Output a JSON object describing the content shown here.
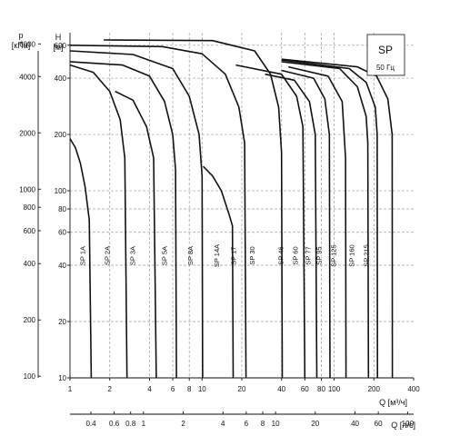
{
  "chart_data": {
    "type": "line",
    "legend_box": {
      "title": "SP",
      "subtitle": "50 Гц"
    },
    "y_axis_pressure": {
      "label_top": "p",
      "unit": "[кПа]",
      "ticks": [
        {
          "label": "6000",
          "h": 610
        },
        {
          "label": "4000",
          "h": 408
        },
        {
          "label": "2000",
          "h": 204
        },
        {
          "label": "1000",
          "h": 102
        },
        {
          "label": "800",
          "h": 81.6
        },
        {
          "label": "600",
          "h": 61.2
        },
        {
          "label": "400",
          "h": 40.8
        },
        {
          "label": "200",
          "h": 20.4
        },
        {
          "label": "100",
          "h": 10.2
        }
      ]
    },
    "y_axis_head": {
      "label_top": "H",
      "unit": "[м]",
      "ticks": [
        {
          "label": "600",
          "h": 600
        },
        {
          "label": "400",
          "h": 400
        },
        {
          "label": "200",
          "h": 200
        },
        {
          "label": "100",
          "h": 100
        },
        {
          "label": "80",
          "h": 80
        },
        {
          "label": "60",
          "h": 60
        },
        {
          "label": "40",
          "h": 40
        },
        {
          "label": "20",
          "h": 20
        },
        {
          "label": "10",
          "h": 10
        }
      ],
      "ylim": [
        10,
        700
      ],
      "scale": "log"
    },
    "x_axis_m3h": {
      "label": "Q [м³/ч]",
      "ticks": [
        {
          "label": "1",
          "q": 1
        },
        {
          "label": "2",
          "q": 2
        },
        {
          "label": "4",
          "q": 4
        },
        {
          "label": "6",
          "q": 6
        },
        {
          "label": "8",
          "q": 8
        },
        {
          "label": "10",
          "q": 10
        },
        {
          "label": "20",
          "q": 20
        },
        {
          "label": "40",
          "q": 40
        },
        {
          "label": "60",
          "q": 60
        },
        {
          "label": "80",
          "q": 80
        },
        {
          "label": "100",
          "q": 100
        },
        {
          "label": "200",
          "q": 200
        },
        {
          "label": "400",
          "q": 400
        }
      ],
      "xlim": [
        1,
        400
      ],
      "scale": "log"
    },
    "x_axis_ls": {
      "label": "Q [л/с]",
      "ticks": [
        {
          "label": "0.4",
          "q": 1.44
        },
        {
          "label": "0.6",
          "q": 2.16
        },
        {
          "label": "0.8",
          "q": 2.88
        },
        {
          "label": "1",
          "q": 3.6
        },
        {
          "label": "2",
          "q": 7.2
        },
        {
          "label": "4",
          "q": 14.4
        },
        {
          "label": "6",
          "q": 21.6
        },
        {
          "label": "8",
          "q": 28.8
        },
        {
          "label": "10",
          "q": 36
        },
        {
          "label": "20",
          "q": 72
        },
        {
          "label": "40",
          "q": 144
        },
        {
          "label": "60",
          "q": 216
        },
        {
          "label": "100",
          "q": 360
        }
      ]
    },
    "grid_lines_q": [
      1,
      2,
      4,
      6,
      8,
      10,
      20,
      40,
      60,
      80,
      100,
      200,
      400
    ],
    "grid_lines_h": [
      10,
      20,
      40,
      60,
      80,
      100,
      200,
      400,
      600
    ],
    "series": [
      {
        "name": "SP 1A",
        "label_q": 1.3,
        "points": [
          [
            1,
            190
          ],
          [
            1.1,
            170
          ],
          [
            1.2,
            140
          ],
          [
            1.3,
            105
          ],
          [
            1.4,
            70
          ],
          [
            1.45,
            10
          ]
        ]
      },
      {
        "name": "SP 2A",
        "label_q": 2.0,
        "points": [
          [
            1,
            470
          ],
          [
            1.5,
            430
          ],
          [
            2,
            340
          ],
          [
            2.4,
            240
          ],
          [
            2.6,
            150
          ],
          [
            2.7,
            10
          ]
        ]
      },
      {
        "name": "SP 3A",
        "label_q": 3.1,
        "points": [
          [
            2.2,
            340
          ],
          [
            3,
            305
          ],
          [
            3.8,
            220
          ],
          [
            4.3,
            150
          ],
          [
            4.5,
            10
          ]
        ]
      },
      {
        "name": "SP 5A",
        "label_q": 5.4,
        "points": [
          [
            1,
            490
          ],
          [
            2.5,
            470
          ],
          [
            4,
            410
          ],
          [
            5.2,
            300
          ],
          [
            6,
            200
          ],
          [
            6.3,
            130
          ],
          [
            6.4,
            10
          ]
        ]
      },
      {
        "name": "SP 8A",
        "label_q": 8.5,
        "points": [
          [
            1,
            560
          ],
          [
            3,
            535
          ],
          [
            6,
            450
          ],
          [
            8,
            320
          ],
          [
            9.5,
            200
          ],
          [
            10,
            120
          ],
          [
            10.1,
            10
          ]
        ]
      },
      {
        "name": "SP 14A",
        "label_q": 13.5,
        "points": [
          [
            10.2,
            135
          ],
          [
            12,
            120
          ],
          [
            14,
            100
          ],
          [
            16,
            75
          ],
          [
            17,
            65
          ],
          [
            17.2,
            10
          ]
        ]
      },
      {
        "name": "SP 17",
        "label_q": 18,
        "points": [
          [
            1,
            600
          ],
          [
            5,
            590
          ],
          [
            10,
            540
          ],
          [
            15,
            420
          ],
          [
            19,
            280
          ],
          [
            21,
            180
          ],
          [
            21.5,
            10
          ]
        ]
      },
      {
        "name": "SP 30",
        "label_q": 25,
        "points": [
          [
            1.8,
            640
          ],
          [
            12,
            635
          ],
          [
            25,
            560
          ],
          [
            33,
            420
          ],
          [
            38,
            280
          ],
          [
            40,
            160
          ],
          [
            40.5,
            10
          ]
        ]
      },
      {
        "name": "SP 46",
        "label_q": 41,
        "points": [
          [
            18,
            470
          ],
          [
            40,
            420
          ],
          [
            52,
            320
          ],
          [
            58,
            220
          ],
          [
            60,
            10
          ]
        ]
      },
      {
        "name": "SP 60",
        "label_q": 53,
        "points": [
          [
            30,
            420
          ],
          [
            50,
            390
          ],
          [
            65,
            300
          ],
          [
            72,
            200
          ],
          [
            74,
            10
          ]
        ]
      },
      {
        "name": "SP 77",
        "label_q": 66,
        "points": [
          [
            40,
            440
          ],
          [
            70,
            400
          ],
          [
            85,
            310
          ],
          [
            92,
            200
          ],
          [
            93,
            10
          ]
        ]
      },
      {
        "name": "SP 95",
        "label_q": 80,
        "points": [
          [
            45,
            460
          ],
          [
            90,
            410
          ],
          [
            115,
            300
          ],
          [
            122,
            150
          ],
          [
            123,
            10
          ]
        ]
      },
      {
        "name": "SP 125",
        "label_q": 103,
        "points": [
          [
            40,
            490
          ],
          [
            110,
            450
          ],
          [
            150,
            360
          ],
          [
            175,
            250
          ],
          [
            180,
            180
          ],
          [
            182,
            10
          ]
        ]
      },
      {
        "name": "SP 160",
        "label_q": 142,
        "points": [
          [
            40,
            500
          ],
          [
            130,
            450
          ],
          [
            175,
            380
          ],
          [
            205,
            280
          ],
          [
            212,
            200
          ],
          [
            213,
            10
          ]
        ]
      },
      {
        "name": "SP 215",
        "label_q": 182,
        "points": [
          [
            40,
            505
          ],
          [
            150,
            460
          ],
          [
            210,
            410
          ],
          [
            255,
            310
          ],
          [
            275,
            200
          ],
          [
            276,
            10
          ]
        ]
      }
    ],
    "series_label_h": 45
  }
}
